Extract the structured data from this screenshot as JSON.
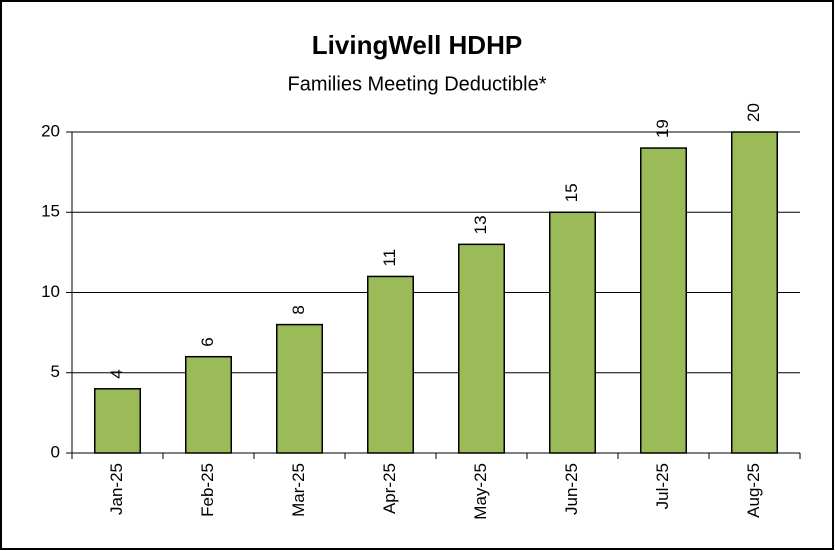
{
  "chart_data": {
    "type": "bar",
    "title": "LivingWell HDHP",
    "subtitle": "Families Meeting Deductible*",
    "categories": [
      "Jan-25",
      "Feb-25",
      "Mar-25",
      "Apr-25",
      "May-25",
      "Jun-25",
      "Jul-25",
      "Aug-25"
    ],
    "values": [
      4,
      6,
      8,
      11,
      13,
      15,
      19,
      20
    ],
    "color": "#9bbb59",
    "ylim": [
      0,
      20
    ],
    "yticks": [
      0,
      5,
      10,
      15,
      20
    ],
    "grid": true
  }
}
